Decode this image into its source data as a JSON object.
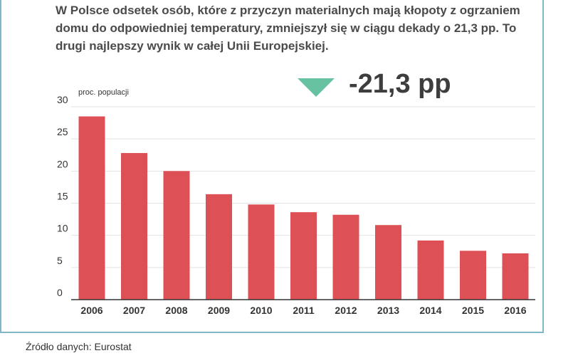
{
  "headline": "W Polsce odsetek osób, które  z przyczyn materialnych mają kłopoty z ogrzaniem domu do odpowiedniej temperatury, zmniejszył się w ciągu dekady o 21,3 pp. To drugi  najlepszy wynik w całej Unii Europejskiej.",
  "delta": {
    "value": "-21,3 pp",
    "icon": "triangle-down-icon",
    "color": "#67c2a1"
  },
  "footer": "Źródło danych: Eurostat",
  "colors": {
    "bar": "#dd5055",
    "grid": "#e2e2e2",
    "axis": "#333333"
  },
  "chart_data": {
    "type": "bar",
    "title": "",
    "xlabel": "",
    "ylabel": "proc. populacji",
    "categories": [
      "2006",
      "2007",
      "2008",
      "2009",
      "2010",
      "2011",
      "2012",
      "2013",
      "2014",
      "2015",
      "2016"
    ],
    "values": [
      28.5,
      22.8,
      20.0,
      16.4,
      14.8,
      13.6,
      13.2,
      11.6,
      9.2,
      7.6,
      7.2
    ],
    "ylim": [
      0,
      30
    ],
    "yticks": [
      0,
      5,
      10,
      15,
      20,
      25,
      30
    ],
    "grid": true
  }
}
